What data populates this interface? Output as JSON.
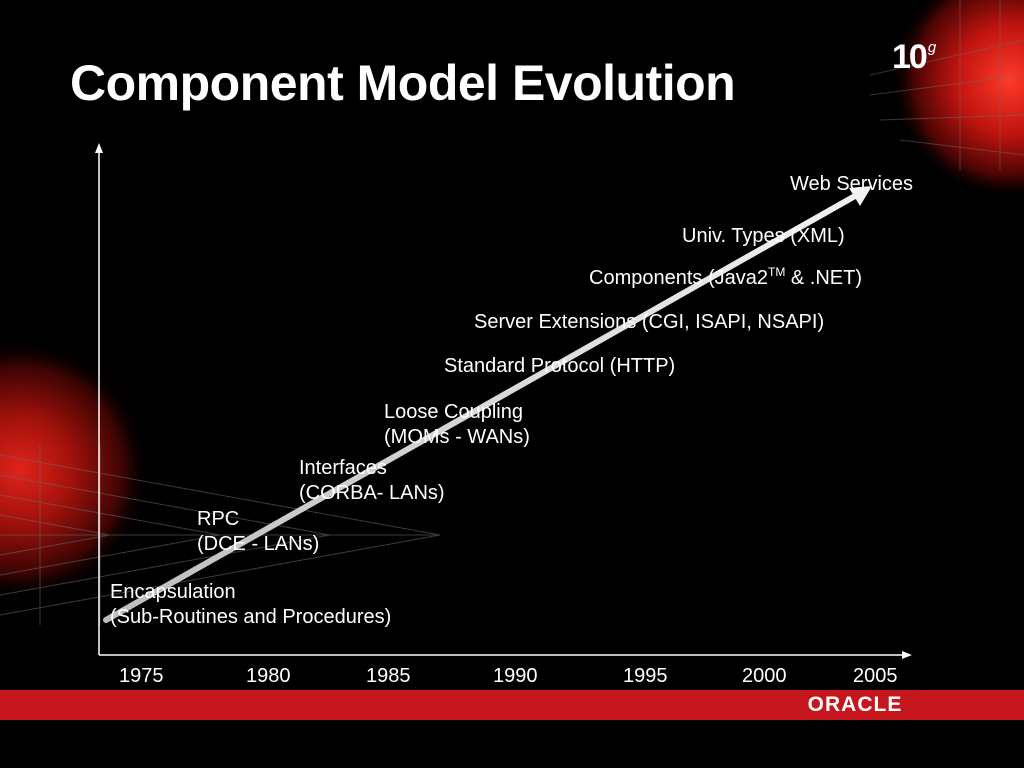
{
  "slide": {
    "title": "Component Model Evolution",
    "brand": {
      "version": "10",
      "suffix": "g",
      "company": "ORACLE"
    }
  },
  "timeline": {
    "years": [
      "1975",
      "1980",
      "1985",
      "1990",
      "1995",
      "2000",
      "2005"
    ],
    "milestones": [
      {
        "line1": "Encapsulation",
        "line2": "(Sub-Routines and Procedures)"
      },
      {
        "line1": "RPC",
        "line2": "(DCE - LANs)"
      },
      {
        "line1": "Interfaces",
        "line2": "(CORBA- LANs)"
      },
      {
        "line1": "Loose Coupling",
        "line2": "(MOMs - WANs)"
      },
      {
        "line1": "Standard Protocol (HTTP)"
      },
      {
        "line1": "Server Extensions (CGI, ISAPI, NSAPI)"
      },
      {
        "line1": "Components (Java2",
        "tm": "TM",
        "line1_suffix": " & .NET)"
      },
      {
        "line1": "Univ. Types (XML)"
      },
      {
        "line1": "Web Services"
      }
    ]
  },
  "colors": {
    "background": "#000000",
    "accent_red": "#c4161c",
    "text": "#ffffff"
  }
}
